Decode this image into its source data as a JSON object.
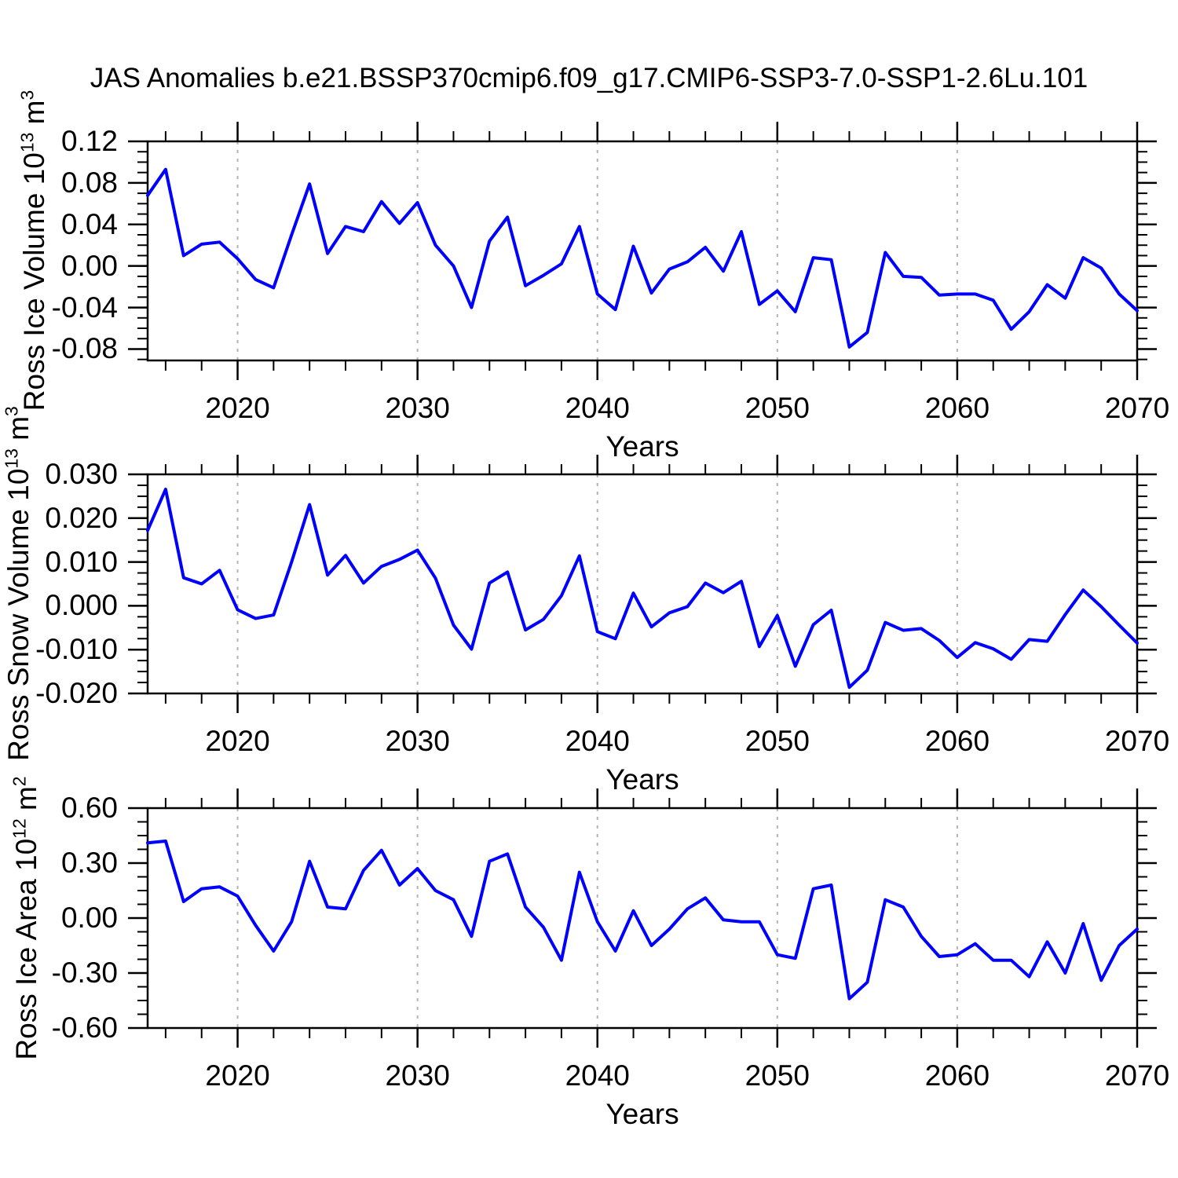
{
  "title": "JAS Anomalies b.e21.BSSP370cmip6.f09_g17.CMIP6-SSP3-7.0-SSP1-2.6Lu.101",
  "colors": {
    "line": "#0000ff",
    "axis": "#000000",
    "gridline": "#b4b4b4",
    "text": "#000000",
    "background": "#ffffff"
  },
  "chart_data": {
    "type": "line",
    "title": "JAS Anomalies b.e21.BSSP370cmip6.f09_g17.CMIP6-SSP3-7.0-SSP1-2.6Lu.101",
    "legend": "none",
    "grid": "vertical-dashed-at-decades",
    "x": [
      2015,
      2016,
      2017,
      2018,
      2019,
      2020,
      2021,
      2022,
      2023,
      2024,
      2025,
      2026,
      2027,
      2028,
      2029,
      2030,
      2031,
      2032,
      2033,
      2034,
      2035,
      2036,
      2037,
      2038,
      2039,
      2040,
      2041,
      2042,
      2043,
      2044,
      2045,
      2046,
      2047,
      2048,
      2049,
      2050,
      2051,
      2052,
      2053,
      2054,
      2055,
      2056,
      2057,
      2058,
      2059,
      2060,
      2061,
      2062,
      2063,
      2064,
      2065,
      2066,
      2067,
      2068,
      2069,
      2070
    ],
    "x_axis": {
      "label": "Years",
      "range": [
        2015,
        2070
      ],
      "major_tick_years": [
        2020,
        2030,
        2040,
        2050,
        2060,
        2070
      ],
      "major_tick_labels": [
        "2020",
        "2030",
        "2040",
        "2050",
        "2060",
        "2070"
      ],
      "minor_tick_step_years": 2,
      "gridline_years": [
        2020,
        2030,
        2040,
        2050,
        2060
      ]
    },
    "panels": [
      {
        "name": "ross-ice-volume",
        "ylabel_plain": "Ross Ice Volume 10^13 m^3",
        "ylabel_base1": "Ross Ice Volume 10",
        "ylabel_sup1": "13",
        "ylabel_base2": " m",
        "ylabel_sup2": "3",
        "xlabel": "Years",
        "ylim": [
          -0.091,
          0.12
        ],
        "y_major_tick_values": [
          0.12,
          0.08,
          0.04,
          0.0,
          -0.04,
          -0.08
        ],
        "y_major_tick_labels": [
          "0.12",
          "0.08",
          "0.04",
          "0.00",
          "-0.04",
          "-0.08"
        ],
        "y_minor_step": 0.01,
        "y_minor_start": -0.09,
        "values": [
          0.068,
          0.093,
          0.01,
          0.021,
          0.023,
          0.007,
          -0.013,
          -0.021,
          0.03,
          0.079,
          0.012,
          0.038,
          0.033,
          0.062,
          0.041,
          0.061,
          0.02,
          0.0,
          -0.04,
          0.024,
          0.047,
          -0.019,
          -0.009,
          0.002,
          0.038,
          -0.027,
          -0.042,
          0.019,
          -0.026,
          -0.003,
          0.004,
          0.018,
          -0.005,
          0.033,
          -0.037,
          -0.024,
          -0.044,
          0.008,
          0.006,
          -0.078,
          -0.064,
          0.013,
          -0.01,
          -0.011,
          -0.028,
          -0.027,
          -0.027,
          -0.033,
          -0.061,
          -0.044,
          -0.018,
          -0.031,
          0.008,
          -0.002,
          -0.027,
          -0.043
        ]
      },
      {
        "name": "ross-snow-volume",
        "ylabel_plain": "Ross Snow Volume 10^13 m^3",
        "ylabel_base1": "Ross Snow Volume 10",
        "ylabel_sup1": "13",
        "ylabel_base2": " m",
        "ylabel_sup2": "3",
        "xlabel": "Years",
        "ylim": [
          -0.02,
          0.03
        ],
        "y_major_tick_values": [
          0.03,
          0.02,
          0.01,
          0.0,
          -0.01,
          -0.02
        ],
        "y_major_tick_labels": [
          "0.030",
          "0.020",
          "0.010",
          "0.000",
          "-0.010",
          "-0.020"
        ],
        "y_minor_step": 0.0025,
        "y_minor_start": -0.02,
        "values": [
          0.0172,
          0.0266,
          0.0064,
          0.005,
          0.0081,
          -0.0009,
          -0.0029,
          -0.0021,
          0.01,
          0.0231,
          0.007,
          0.0115,
          0.0052,
          0.009,
          0.0106,
          0.0127,
          0.0063,
          -0.0044,
          -0.0099,
          0.0052,
          0.0077,
          -0.0055,
          -0.0031,
          0.0023,
          0.0114,
          -0.0059,
          -0.0075,
          0.0029,
          -0.0048,
          -0.0016,
          -0.0002,
          0.0052,
          0.003,
          0.0056,
          -0.0093,
          -0.0022,
          -0.0138,
          -0.0043,
          -0.001,
          -0.0186,
          -0.0147,
          -0.0038,
          -0.0056,
          -0.0052,
          -0.0079,
          -0.0118,
          -0.0084,
          -0.0098,
          -0.0122,
          -0.0077,
          -0.0081,
          -0.002,
          0.0036,
          -0.0002,
          -0.0044,
          -0.0085
        ]
      },
      {
        "name": "ross-ice-area",
        "ylabel_plain": "Ross Ice Area 10^12 m^2",
        "ylabel_base1": "Ross Ice Area 10",
        "ylabel_sup1": "12",
        "ylabel_base2": " m",
        "ylabel_sup2": "2",
        "xlabel": "Years",
        "ylim": [
          -0.6,
          0.6
        ],
        "y_major_tick_values": [
          0.6,
          0.3,
          0.0,
          -0.3,
          -0.6
        ],
        "y_major_tick_labels": [
          "0.60",
          "0.30",
          "0.00",
          "-0.30",
          "-0.60"
        ],
        "y_minor_step": 0.075,
        "y_minor_start": -0.6,
        "values": [
          0.41,
          0.42,
          0.09,
          0.16,
          0.17,
          0.12,
          -0.04,
          -0.18,
          -0.02,
          0.31,
          0.06,
          0.05,
          0.26,
          0.37,
          0.18,
          0.27,
          0.15,
          0.1,
          -0.1,
          0.31,
          0.35,
          0.06,
          -0.05,
          -0.23,
          0.25,
          -0.02,
          -0.18,
          0.04,
          -0.15,
          -0.06,
          0.05,
          0.11,
          -0.01,
          -0.02,
          -0.02,
          -0.2,
          -0.22,
          0.16,
          0.18,
          -0.44,
          -0.35,
          0.1,
          0.06,
          -0.1,
          -0.21,
          -0.2,
          -0.14,
          -0.23,
          -0.23,
          -0.32,
          -0.13,
          -0.3,
          -0.03,
          -0.34,
          -0.15,
          -0.06
        ]
      }
    ]
  }
}
